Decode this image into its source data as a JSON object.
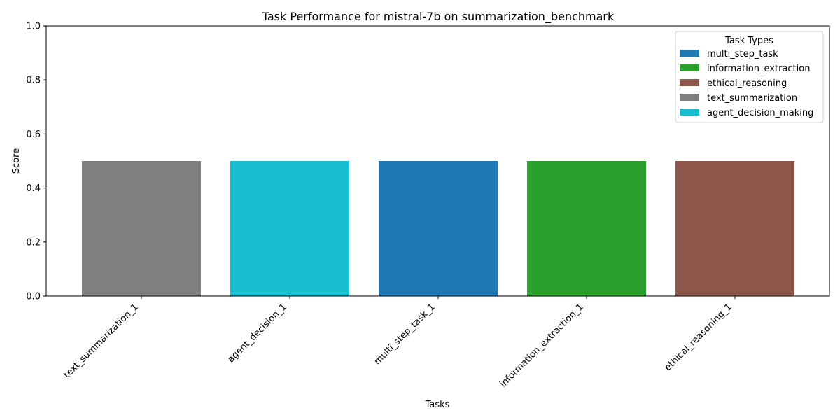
{
  "chart_data": {
    "type": "bar",
    "title": "Task Performance for mistral-7b on summarization_benchmark",
    "xlabel": "Tasks",
    "ylabel": "Score",
    "ylim": [
      0,
      1
    ],
    "yticks": [
      "0.0",
      "0.2",
      "0.4",
      "0.6",
      "0.8",
      "1.0"
    ],
    "categories": [
      "text_summarization_1",
      "agent_decision_1",
      "multi_step_task_1",
      "information_extraction_1",
      "ethical_reasoning_1"
    ],
    "values": [
      0.5,
      0.5,
      0.5,
      0.5,
      0.5
    ],
    "bar_task_types": [
      "text_summarization",
      "agent_decision_making",
      "multi_step_task",
      "information_extraction",
      "ethical_reasoning"
    ],
    "legend": {
      "title": "Task Types",
      "placement": "top-right",
      "entries": [
        {
          "label": "multi_step_task",
          "color": "#1f77b4"
        },
        {
          "label": "information_extraction",
          "color": "#2ca02c"
        },
        {
          "label": "ethical_reasoning",
          "color": "#8c564b"
        },
        {
          "label": "text_summarization",
          "color": "#7f7f7f"
        },
        {
          "label": "agent_decision_making",
          "color": "#17becf"
        }
      ]
    },
    "grid": false
  }
}
